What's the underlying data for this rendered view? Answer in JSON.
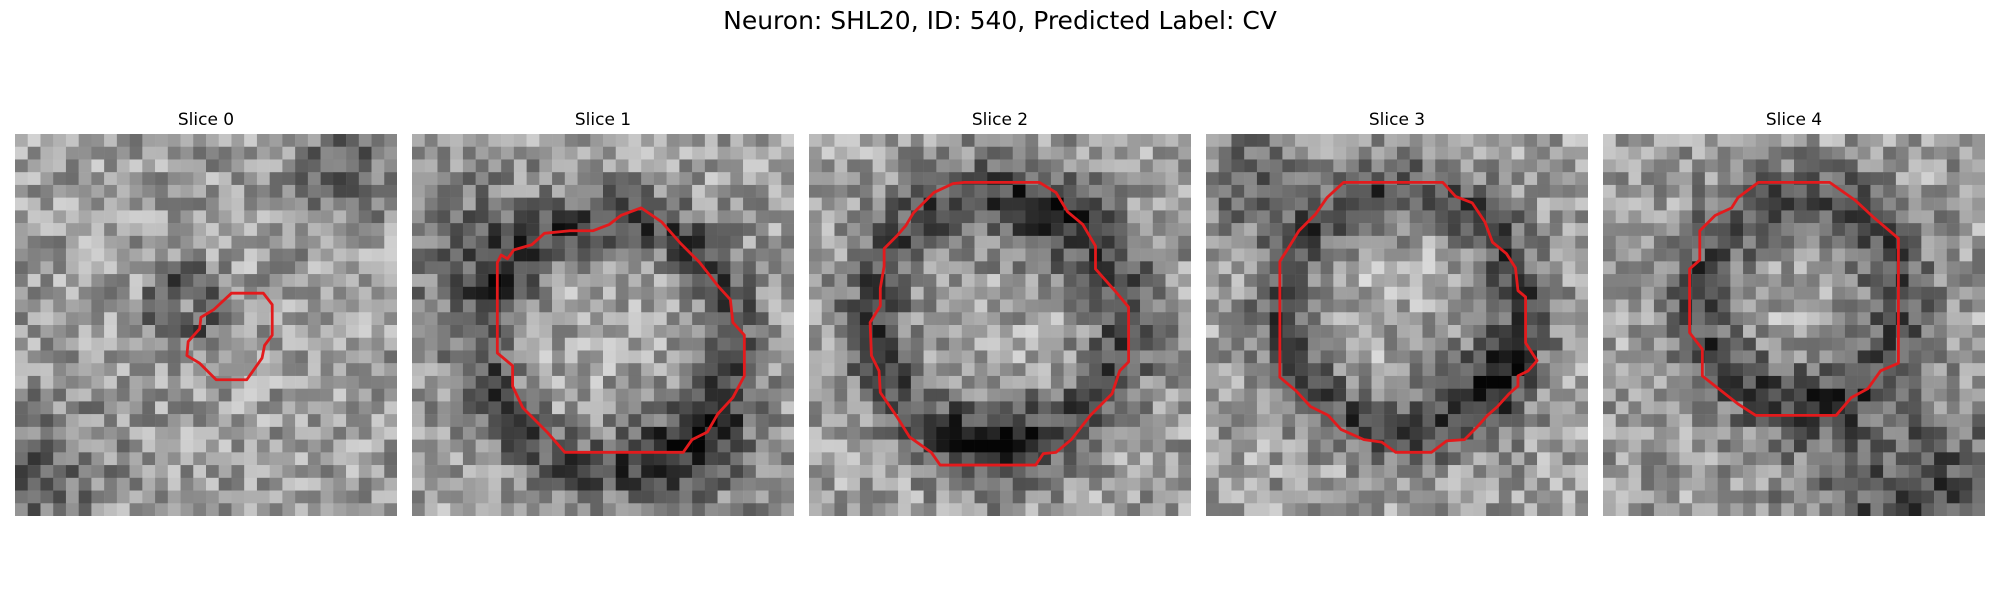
{
  "figure": {
    "title": "Neuron: SHL20, ID: 540, Predicted Label: CV",
    "outline_color": "#e31a1c",
    "colormap": "grayscale",
    "panels": [
      {
        "title": "Slice 0"
      },
      {
        "title": "Slice 1"
      },
      {
        "title": "Slice 2"
      },
      {
        "title": "Slice 3"
      },
      {
        "title": "Slice 4"
      }
    ]
  }
}
